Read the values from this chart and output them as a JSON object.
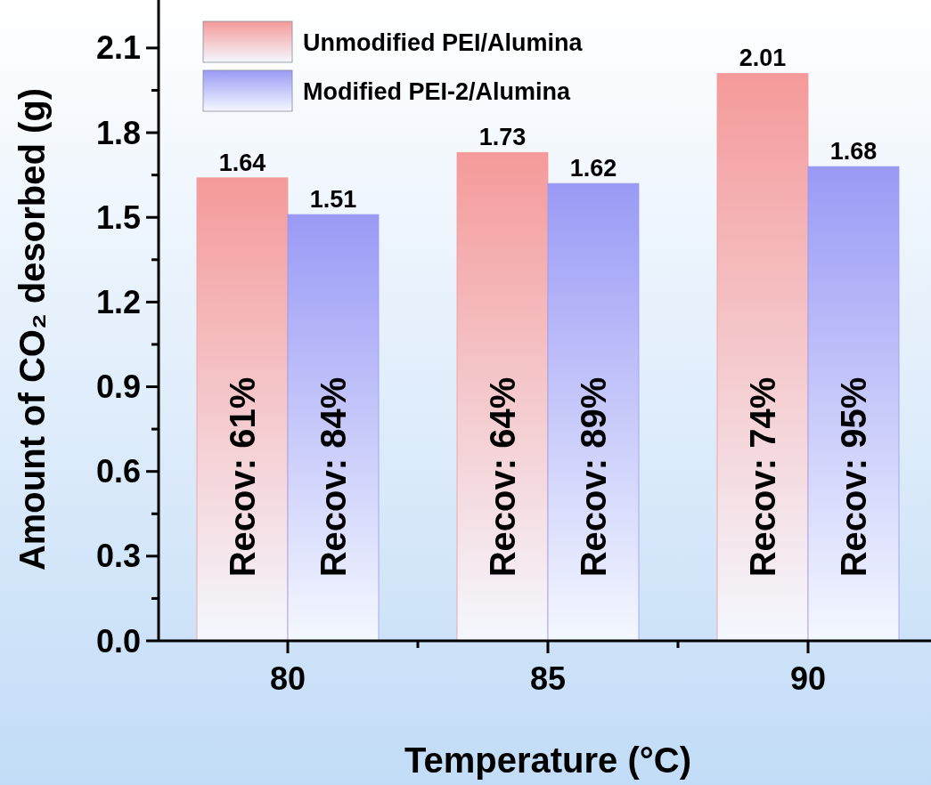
{
  "chart_data": {
    "type": "bar",
    "xlabel": "Temperature (°C)",
    "ylabel": "Amount of CO₂ desorbed (g)",
    "categories": [
      "80",
      "85",
      "90"
    ],
    "series": [
      {
        "name": "Unmodified PEI/Alumina",
        "color": "#f59a9a",
        "values": [
          1.64,
          1.73,
          2.01
        ]
      },
      {
        "name": "Modified PEI-2/Alumina",
        "color": "#9a9af5",
        "values": [
          1.51,
          1.62,
          1.68
        ]
      }
    ],
    "ylim": [
      0,
      2.27
    ],
    "yticks": [
      {
        "value": 0,
        "label": "0.0"
      },
      {
        "value": 0.3,
        "label": "0.3"
      },
      {
        "value": 0.6,
        "label": "0.6"
      },
      {
        "value": 0.9,
        "label": "0.9"
      },
      {
        "value": 1.2,
        "label": "1.2"
      },
      {
        "value": 1.5,
        "label": "1.5"
      },
      {
        "value": 1.8,
        "label": "1.8"
      },
      {
        "value": 2.1,
        "label": "2.1"
      }
    ],
    "data_labels": true,
    "legend": "top left",
    "annotations": [
      {
        "text": "Recov: 61%",
        "x": "80",
        "y": 0.58
      },
      {
        "text": "Recov: 84%",
        "x": "80",
        "y": 0.58
      },
      {
        "text": "Recov: 64%",
        "x": "85",
        "y": 0.58
      },
      {
        "text": "Recov: 89%",
        "x": "85",
        "y": 0.58
      },
      {
        "text": "Recov: 74%",
        "x": "90",
        "y": 0.58
      },
      {
        "text": "Recov: 95%",
        "x": "90",
        "y": 0.58
      }
    ]
  }
}
